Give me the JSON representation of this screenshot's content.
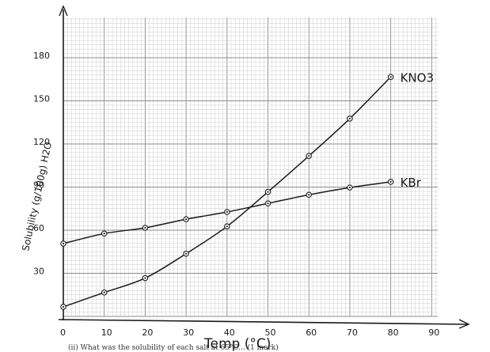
{
  "chart_data": {
    "type": "line",
    "title": "",
    "xlabel": "Temp (°C)",
    "ylabel": "Solubility (g/100g) H2O",
    "xlim": [
      0,
      90
    ],
    "ylim": [
      0,
      180
    ],
    "x_ticks": [
      "0",
      "10",
      "20",
      "30",
      "40",
      "50",
      "60",
      "70",
      "80",
      "90"
    ],
    "y_ticks": [
      "30",
      "60",
      "90",
      "120",
      "150",
      "180"
    ],
    "grid": true,
    "series": [
      {
        "name": "KNO3",
        "x": [
          0,
          10,
          20,
          30,
          40,
          50,
          60,
          70,
          80
        ],
        "values": [
          5,
          15,
          25,
          42,
          61,
          85,
          110,
          136,
          165
        ]
      },
      {
        "name": "KBr",
        "x": [
          0,
          10,
          20,
          30,
          40,
          50,
          60,
          70,
          80
        ],
        "values": [
          49,
          56,
          60,
          66,
          71,
          77,
          83,
          88,
          92
        ]
      }
    ],
    "series_labels": [
      "KNO3",
      "KBr"
    ],
    "caption": "(ii) What was the solubility of each salt at 65°C... (1 mark)"
  },
  "colors": {
    "ink": "#1a1a1a",
    "grid_major": "#8c8c8c",
    "grid_minor": "#c8c8c8"
  }
}
